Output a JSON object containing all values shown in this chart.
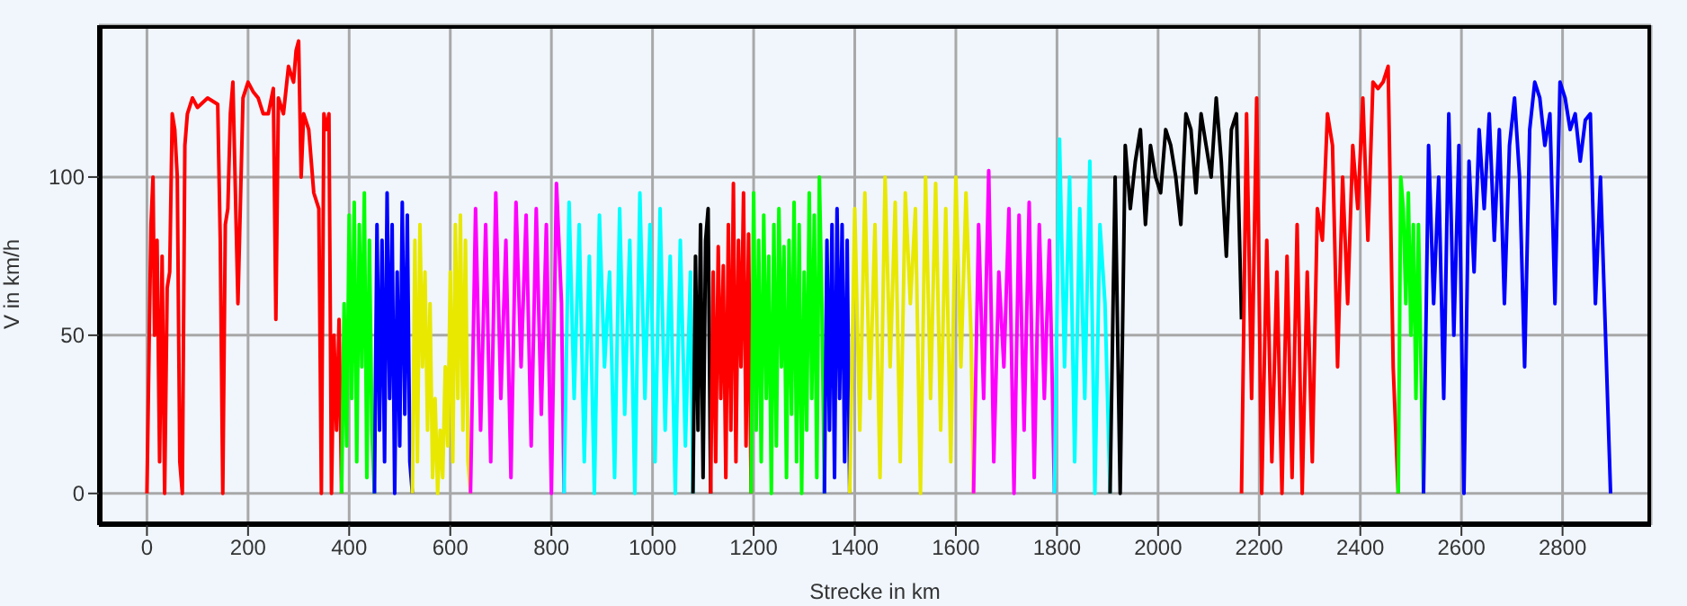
{
  "chart_data": {
    "type": "line",
    "xlabel": "Strecke in km",
    "ylabel": "V in km/h",
    "xlim": [
      -95,
      2975
    ],
    "ylim": [
      -10,
      148
    ],
    "xticks": [
      0,
      200,
      400,
      600,
      800,
      1000,
      1200,
      1400,
      1600,
      1800,
      2000,
      2200,
      2400,
      2600,
      2800
    ],
    "yticks": [
      0,
      50,
      100
    ],
    "grid": true,
    "line_style": "solid",
    "series": [
      {
        "color": "#ff0000",
        "x": [
          0,
          5,
          8,
          12,
          15,
          20,
          25,
          30,
          35,
          40,
          45,
          50,
          55,
          60,
          65,
          70,
          75,
          80,
          90,
          100,
          120,
          140,
          145,
          150,
          155,
          160,
          165,
          170,
          180,
          190,
          200,
          210,
          220,
          230,
          240,
          250,
          255,
          260,
          270,
          280,
          290,
          295,
          300,
          305,
          310,
          320,
          330,
          340,
          345,
          350,
          355,
          360,
          365,
          370,
          375,
          380,
          385
        ],
        "values": [
          0,
          55,
          85,
          100,
          50,
          80,
          10,
          75,
          0,
          65,
          70,
          120,
          115,
          100,
          10,
          0,
          110,
          120,
          125,
          122,
          125,
          123,
          80,
          0,
          85,
          90,
          120,
          130,
          60,
          125,
          130,
          127,
          125,
          120,
          120,
          128,
          55,
          125,
          120,
          135,
          130,
          140,
          143,
          100,
          120,
          115,
          95,
          90,
          0,
          120,
          115,
          120,
          0,
          50,
          20,
          55,
          0
        ]
      },
      {
        "color": "#00ff00",
        "x": [
          385,
          390,
          395,
          400,
          405,
          410,
          415,
          420,
          425,
          430,
          435,
          440,
          445,
          450
        ],
        "values": [
          0,
          60,
          15,
          88,
          30,
          92,
          10,
          85,
          40,
          95,
          5,
          80,
          20,
          0
        ]
      },
      {
        "color": "#0000ff",
        "x": [
          450,
          455,
          460,
          465,
          470,
          475,
          480,
          485,
          490,
          495,
          500,
          505,
          510,
          515,
          520,
          525
        ],
        "values": [
          0,
          85,
          20,
          80,
          10,
          95,
          30,
          85,
          0,
          70,
          15,
          92,
          25,
          88,
          10,
          0
        ]
      },
      {
        "color": "#e8e800",
        "x": [
          525,
          530,
          535,
          540,
          545,
          550,
          555,
          560,
          565,
          570,
          575,
          580,
          585,
          590,
          595,
          600,
          605,
          610,
          615,
          620,
          625,
          630,
          635,
          640
        ],
        "values": [
          0,
          80,
          10,
          85,
          40,
          70,
          20,
          60,
          5,
          30,
          0,
          20,
          5,
          40,
          15,
          70,
          10,
          85,
          30,
          88,
          20,
          80,
          10,
          0
        ]
      },
      {
        "color": "#ff00ff",
        "x": [
          640,
          650,
          660,
          670,
          680,
          690,
          700,
          710,
          720,
          730,
          740,
          750,
          760,
          770,
          780,
          790,
          800,
          810,
          820,
          825
        ],
        "values": [
          0,
          90,
          20,
          85,
          10,
          95,
          30,
          80,
          5,
          92,
          40,
          88,
          15,
          90,
          25,
          85,
          0,
          98,
          60,
          0
        ]
      },
      {
        "color": "#00ffff",
        "x": [
          825,
          835,
          845,
          855,
          865,
          875,
          885,
          895,
          905,
          915,
          925,
          935,
          945,
          955,
          965,
          975,
          985,
          995,
          1005,
          1015,
          1025,
          1035,
          1045,
          1055,
          1065,
          1075,
          1080
        ],
        "values": [
          0,
          92,
          30,
          85,
          10,
          75,
          0,
          88,
          40,
          70,
          5,
          90,
          25,
          80,
          0,
          95,
          30,
          85,
          10,
          90,
          20,
          75,
          0,
          80,
          15,
          70,
          0
        ]
      },
      {
        "color": "#000000",
        "x": [
          1080,
          1085,
          1090,
          1095,
          1100,
          1105,
          1110,
          1115
        ],
        "values": [
          0,
          75,
          20,
          85,
          5,
          80,
          90,
          0
        ]
      },
      {
        "color": "#ff0000",
        "x": [
          1115,
          1120,
          1125,
          1130,
          1135,
          1140,
          1145,
          1150,
          1155,
          1160,
          1165,
          1170,
          1175,
          1180,
          1185,
          1190,
          1195
        ],
        "values": [
          0,
          70,
          10,
          78,
          30,
          72,
          5,
          85,
          20,
          98,
          10,
          80,
          40,
          95,
          15,
          82,
          0
        ]
      },
      {
        "color": "#00ff00",
        "x": [
          1195,
          1200,
          1205,
          1210,
          1215,
          1220,
          1225,
          1230,
          1235,
          1240,
          1245,
          1250,
          1255,
          1260,
          1265,
          1270,
          1275,
          1280,
          1285,
          1290,
          1295,
          1300,
          1305,
          1310,
          1315,
          1320,
          1325,
          1330,
          1335,
          1340
        ],
        "values": [
          0,
          95,
          20,
          80,
          10,
          88,
          30,
          75,
          0,
          85,
          15,
          90,
          40,
          78,
          5,
          80,
          25,
          92,
          10,
          85,
          0,
          70,
          20,
          95,
          30,
          88,
          5,
          100,
          60,
          0
        ]
      },
      {
        "color": "#0000ff",
        "x": [
          1340,
          1345,
          1350,
          1355,
          1360,
          1365,
          1370,
          1375,
          1380,
          1385,
          1390
        ],
        "values": [
          0,
          80,
          20,
          85,
          5,
          90,
          30,
          85,
          10,
          80,
          0
        ]
      },
      {
        "color": "#e8e800",
        "x": [
          1390,
          1400,
          1410,
          1420,
          1430,
          1440,
          1450,
          1460,
          1470,
          1480,
          1490,
          1500,
          1510,
          1520,
          1530,
          1540,
          1550,
          1560,
          1570,
          1580,
          1590,
          1600,
          1610,
          1620,
          1630,
          1635
        ],
        "values": [
          0,
          90,
          20,
          95,
          30,
          85,
          5,
          100,
          40,
          92,
          10,
          95,
          60,
          90,
          0,
          100,
          30,
          98,
          20,
          90,
          10,
          100,
          40,
          95,
          50,
          0
        ]
      },
      {
        "color": "#ff00ff",
        "x": [
          1635,
          1645,
          1655,
          1665,
          1675,
          1685,
          1695,
          1705,
          1715,
          1725,
          1735,
          1745,
          1755,
          1765,
          1775,
          1785,
          1795
        ],
        "values": [
          0,
          85,
          30,
          102,
          10,
          70,
          40,
          90,
          0,
          88,
          20,
          92,
          5,
          85,
          30,
          80,
          0
        ]
      },
      {
        "color": "#00ffff",
        "x": [
          1795,
          1805,
          1815,
          1825,
          1835,
          1845,
          1855,
          1865,
          1875,
          1885,
          1895,
          1905
        ],
        "values": [
          0,
          112,
          40,
          100,
          10,
          90,
          30,
          105,
          0,
          85,
          60,
          0
        ]
      },
      {
        "color": "#000000",
        "x": [
          1905,
          1915,
          1925,
          1935,
          1945,
          1955,
          1965,
          1975,
          1985,
          1995,
          2005,
          2015,
          2025,
          2035,
          2045,
          2055,
          2065,
          2075,
          2085,
          2095,
          2105,
          2115,
          2125,
          2135,
          2145,
          2155,
          2165
        ],
        "values": [
          0,
          100,
          0,
          110,
          90,
          105,
          115,
          85,
          110,
          100,
          95,
          115,
          110,
          100,
          85,
          120,
          115,
          95,
          120,
          110,
          100,
          125,
          105,
          75,
          115,
          120,
          55
        ]
      },
      {
        "color": "#ff0000",
        "x": [
          2165,
          2175,
          2185,
          2195,
          2205,
          2215,
          2225,
          2235,
          2245,
          2255,
          2265,
          2275,
          2285,
          2295,
          2305,
          2315,
          2325,
          2335,
          2345,
          2355,
          2365,
          2375,
          2385,
          2395,
          2405,
          2415,
          2425,
          2435,
          2445,
          2455,
          2465,
          2475
        ],
        "values": [
          0,
          120,
          30,
          125,
          0,
          80,
          10,
          70,
          0,
          75,
          5,
          85,
          0,
          70,
          10,
          90,
          80,
          120,
          110,
          40,
          100,
          60,
          110,
          90,
          125,
          80,
          130,
          128,
          130,
          135,
          40,
          0
        ]
      },
      {
        "color": "#00ff00",
        "x": [
          2475,
          2480,
          2485,
          2490,
          2495,
          2500,
          2505,
          2510,
          2515,
          2520,
          2525
        ],
        "values": [
          0,
          100,
          90,
          60,
          95,
          50,
          85,
          30,
          85,
          40,
          0
        ]
      },
      {
        "color": "#0000ff",
        "x": [
          2525,
          2535,
          2545,
          2555,
          2565,
          2575,
          2585,
          2595,
          2605,
          2615,
          2625,
          2635,
          2645,
          2655,
          2665,
          2675,
          2685,
          2695,
          2705,
          2715,
          2725,
          2735,
          2745,
          2755,
          2765,
          2775,
          2785,
          2795,
          2805,
          2815,
          2825,
          2835,
          2845,
          2855,
          2865,
          2875,
          2885,
          2895
        ],
        "values": [
          0,
          110,
          60,
          100,
          30,
          120,
          50,
          110,
          0,
          105,
          70,
          115,
          90,
          120,
          80,
          115,
          60,
          110,
          125,
          100,
          40,
          115,
          130,
          125,
          110,
          120,
          60,
          130,
          125,
          115,
          120,
          105,
          118,
          120,
          60,
          100,
          50,
          0
        ]
      }
    ]
  }
}
